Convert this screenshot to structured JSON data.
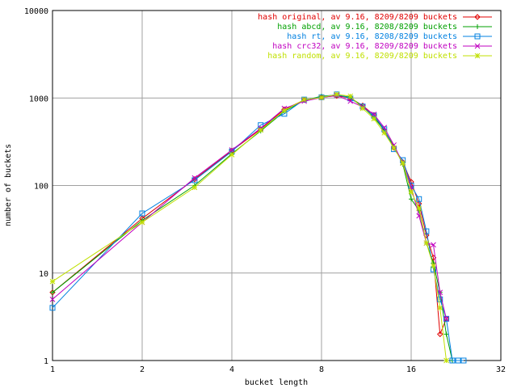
{
  "chart_data": {
    "type": "line",
    "title": "",
    "xlabel": "bucket length",
    "ylabel": "number of buckets",
    "x_scale": "log2",
    "y_scale": "log10",
    "xlim": [
      1,
      32
    ],
    "ylim": [
      1,
      10000
    ],
    "x_ticks": [
      1,
      2,
      4,
      8,
      16,
      32
    ],
    "x_tick_labels": [
      "1",
      "2",
      "4",
      "8",
      "16",
      "32"
    ],
    "y_ticks": [
      1,
      10,
      100,
      1000,
      10000
    ],
    "y_tick_labels": [
      "1",
      "10",
      "100",
      "1000",
      "10000"
    ],
    "grid": true,
    "legend_position": "top-right",
    "series": [
      {
        "name": "hash original, av 9.16, 8209/8209 buckets",
        "color": "#e00000",
        "marker": "diamond",
        "x": [
          1,
          2,
          3,
          4,
          5,
          6,
          7,
          8,
          9,
          10,
          11,
          12,
          13,
          14,
          15,
          16,
          17,
          18,
          19,
          20,
          21
        ],
        "y": [
          6,
          42,
          118,
          250,
          440,
          740,
          950,
          1020,
          1060,
          1000,
          820,
          640,
          420,
          270,
          185,
          110,
          62,
          27,
          15,
          2,
          3
        ]
      },
      {
        "name": "hash abcd, av 9.16, 8208/8209 buckets",
        "color": "#00a000",
        "marker": "plus",
        "x": [
          1,
          2,
          3,
          4,
          5,
          6,
          7,
          8,
          9,
          10,
          11,
          12,
          13,
          14,
          15,
          16,
          17,
          18,
          19,
          20,
          21,
          22
        ],
        "y": [
          6,
          40,
          100,
          230,
          420,
          700,
          940,
          1050,
          1080,
          1020,
          800,
          600,
          430,
          280,
          175,
          70,
          52,
          22,
          13,
          6,
          2,
          1
        ]
      },
      {
        "name": "hash rt, av 9.16, 8208/8209 buckets",
        "color": "#0080e0",
        "marker": "square",
        "x": [
          1,
          2,
          3,
          4,
          5,
          6,
          7,
          8,
          9,
          10,
          11,
          12,
          13,
          14,
          15,
          16,
          17,
          18,
          19,
          20,
          21,
          22,
          23,
          24
        ],
        "y": [
          4,
          48,
          115,
          245,
          490,
          660,
          960,
          1020,
          1100,
          990,
          800,
          630,
          440,
          260,
          195,
          100,
          70,
          30,
          11,
          5,
          3,
          1,
          1,
          1
        ]
      },
      {
        "name": "hash crc32, av 9.16, 8209/8209 buckets",
        "color": "#c000c0",
        "marker": "cross",
        "x": [
          1,
          2,
          3,
          4,
          5,
          6,
          7,
          8,
          9,
          10,
          11,
          12,
          13,
          14,
          15,
          16,
          17,
          18,
          19,
          20,
          21
        ],
        "y": [
          5,
          38,
          122,
          255,
          450,
          760,
          920,
          1010,
          1070,
          920,
          790,
          650,
          460,
          290,
          180,
          95,
          45,
          22,
          21,
          6,
          3
        ]
      },
      {
        "name": "hash random, av 9.16, 8209/8209 buckets",
        "color": "#c0e000",
        "marker": "star",
        "x": [
          1,
          2,
          3,
          4,
          5,
          6,
          7,
          8,
          9,
          10,
          11,
          12,
          13,
          14,
          15,
          16,
          17,
          18,
          19,
          20,
          21
        ],
        "y": [
          8,
          38,
          95,
          225,
          430,
          720,
          960,
          1010,
          1100,
          1050,
          760,
          580,
          400,
          270,
          180,
          85,
          55,
          22,
          12,
          4,
          1
        ]
      }
    ]
  }
}
